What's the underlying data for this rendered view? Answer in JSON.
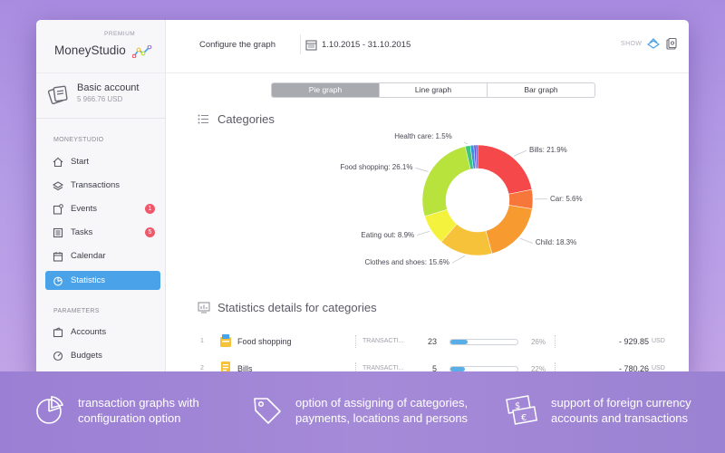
{
  "window": {
    "brand_premium": "PREMIUM",
    "brand_name": "MoneyStudio"
  },
  "account": {
    "name": "Basic account",
    "balance": "5 966.76 USD"
  },
  "sidebar": {
    "section_main": "MONEYSTUDIO",
    "items": [
      {
        "label": "Start",
        "icon": "home-icon"
      },
      {
        "label": "Transactions",
        "icon": "transactions-icon"
      },
      {
        "label": "Events",
        "icon": "events-icon",
        "badge": "1"
      },
      {
        "label": "Tasks",
        "icon": "tasks-icon",
        "badge": "5"
      },
      {
        "label": "Calendar",
        "icon": "calendar-icon"
      },
      {
        "label": "Statistics",
        "icon": "statistics-icon",
        "active": true
      }
    ],
    "section_params": "PARAMETERS",
    "param_items": [
      {
        "label": "Accounts",
        "icon": "accounts-icon"
      },
      {
        "label": "Budgets",
        "icon": "budgets-icon"
      }
    ]
  },
  "toolbar": {
    "configure_label": "Configure the graph",
    "date_range": "1.10.2015 - 31.10.2015",
    "show_label": "SHOW"
  },
  "graph_tabs": [
    {
      "label": "Pie graph",
      "active": true
    },
    {
      "label": "Line graph",
      "active": false
    },
    {
      "label": "Bar graph",
      "active": false
    }
  ],
  "categories_title": "Categories",
  "chart_data": {
    "type": "pie",
    "donut": true,
    "title": "Categories",
    "slices": [
      {
        "label": "Bills: 21.9%",
        "name": "Bills",
        "value": 21.9,
        "color": "#f5484a"
      },
      {
        "label": "Car: 5.6%",
        "name": "Car",
        "value": 5.6,
        "color": "#f7763a"
      },
      {
        "label": "Child: 18.3%",
        "name": "Child",
        "value": 18.3,
        "color": "#f79a30"
      },
      {
        "label": "Clothes and shoes: 15.6%",
        "name": "Clothes and shoes",
        "value": 15.6,
        "color": "#f5c23a"
      },
      {
        "label": "Eating out: 8.9%",
        "name": "Eating out",
        "value": 8.9,
        "color": "#f5f23e"
      },
      {
        "label": "Food shopping: 26.1%",
        "name": "Food shopping",
        "value": 26.1,
        "color": "#b8e23c"
      },
      {
        "label": "Health care: 1.5%",
        "name": "Health care",
        "value": 1.5,
        "color": "#3fc57a"
      },
      {
        "label": "",
        "name": "",
        "value": 1.0,
        "color": "#3a8ee0"
      },
      {
        "label": "",
        "name": "",
        "value": 0.6,
        "color": "#6a4ec8"
      },
      {
        "label": "",
        "name": "",
        "value": 0.5,
        "color": "#3f3fb8"
      }
    ]
  },
  "stats_title": "Statistics details for categories",
  "stats_rows": [
    {
      "num": "1",
      "name": "Food shopping",
      "icon": "shopping-basket-icon",
      "tr_label": "TRANSACTI...",
      "count": "23",
      "bar_fraction": 0.26,
      "pct": "26%",
      "amount": "- 929.85",
      "currency": "USD"
    },
    {
      "num": "2",
      "name": "Bills",
      "icon": "bill-icon",
      "tr_label": "TRANSACTI...",
      "count": "5",
      "bar_fraction": 0.22,
      "pct": "22%",
      "amount": "- 780.26",
      "currency": "USD"
    }
  ],
  "features": [
    {
      "text": "transaction graphs with configuration option",
      "icon": "pie-chart-icon"
    },
    {
      "text": "option of assigning of categories, payments, locations and persons",
      "icon": "tag-icon"
    },
    {
      "text": "support of foreign currency accounts and transactions",
      "icon": "currency-icon"
    }
  ]
}
